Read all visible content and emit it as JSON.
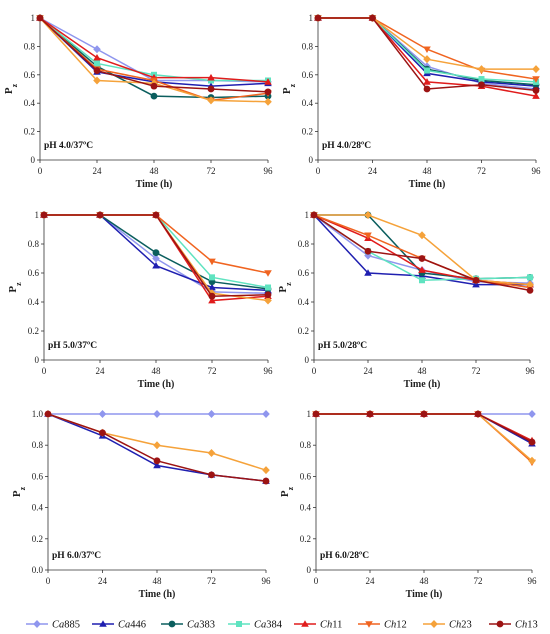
{
  "colors": {
    "Ca885": "#8f96ee",
    "Ca446": "#1f1fb0",
    "Ca383": "#0b5e5e",
    "Ca384": "#5fe3c0",
    "Ch11": "#e01c1c",
    "Ch12": "#f06420",
    "Ch23": "#f5a23a",
    "Ch13": "#9c1313"
  },
  "legend": {
    "placement": "bottom",
    "entries": [
      {
        "key": "Ca885",
        "genus": "Ca",
        "code": "885",
        "marker": "diamond"
      },
      {
        "key": "Ca446",
        "genus": "Ca",
        "code": "446",
        "marker": "triangle-up"
      },
      {
        "key": "Ca383",
        "genus": "Ca",
        "code": "383",
        "marker": "circle"
      },
      {
        "key": "Ca384",
        "genus": "Ca",
        "code": "384",
        "marker": "square"
      },
      {
        "key": "Ch11",
        "genus": "Ch",
        "code": "11",
        "marker": "triangle-up"
      },
      {
        "key": "Ch12",
        "genus": "Ch",
        "code": "12",
        "marker": "triangle-down"
      },
      {
        "key": "Ch23",
        "genus": "Ch",
        "code": "23",
        "marker": "diamond"
      },
      {
        "key": "Ch13",
        "genus": "Ch",
        "code": "13",
        "marker": "circle"
      }
    ]
  },
  "chart_data": [
    {
      "type": "line",
      "annotation": "pH 4.0/37ºC",
      "xlabel": "Time (h)",
      "ylabel": "Pz",
      "x": [
        0,
        24,
        48,
        72,
        96
      ],
      "xlim": [
        0,
        96
      ],
      "ylim": [
        0,
        1.0
      ],
      "yticks": [
        "0",
        "0.2",
        "0.4",
        "0.6",
        "0.8",
        "1"
      ],
      "grid": false,
      "series": [
        {
          "name": "Ca885",
          "values": [
            1.0,
            0.78,
            0.56,
            0.56,
            0.55
          ]
        },
        {
          "name": "Ca446",
          "values": [
            1.0,
            0.62,
            0.55,
            0.52,
            0.54
          ]
        },
        {
          "name": "Ca383",
          "values": [
            1.0,
            0.66,
            0.45,
            0.44,
            0.45
          ]
        },
        {
          "name": "Ca384",
          "values": [
            1.0,
            0.68,
            0.6,
            0.56,
            0.56
          ]
        },
        {
          "name": "Ch11",
          "values": [
            1.0,
            0.72,
            0.58,
            0.58,
            0.55
          ]
        },
        {
          "name": "Ch12",
          "values": [
            1.0,
            0.64,
            0.56,
            0.42,
            0.47
          ]
        },
        {
          "name": "Ch23",
          "values": [
            1.0,
            0.56,
            0.54,
            0.42,
            0.41
          ]
        },
        {
          "name": "Ch13",
          "values": [
            1.0,
            0.63,
            0.52,
            0.5,
            0.48
          ]
        }
      ]
    },
    {
      "type": "line",
      "annotation": "pH 4.0/28ºC",
      "xlabel": "Time (h)",
      "ylabel": "Pz",
      "x": [
        0,
        24,
        48,
        72,
        96
      ],
      "xlim": [
        0,
        96
      ],
      "ylim": [
        0,
        1.0
      ],
      "yticks": [
        "0",
        "0.2",
        "0.4",
        "0.6",
        "0.8",
        "1"
      ],
      "grid": false,
      "series": [
        {
          "name": "Ca885",
          "values": [
            1.0,
            1.0,
            0.66,
            0.54,
            0.5
          ]
        },
        {
          "name": "Ca446",
          "values": [
            1.0,
            1.0,
            0.61,
            0.55,
            0.52
          ]
        },
        {
          "name": "Ca383",
          "values": [
            1.0,
            1.0,
            0.64,
            0.56,
            0.53
          ]
        },
        {
          "name": "Ca384",
          "values": [
            1.0,
            1.0,
            0.63,
            0.57,
            0.55
          ]
        },
        {
          "name": "Ch11",
          "values": [
            1.0,
            1.0,
            0.55,
            0.52,
            0.45
          ]
        },
        {
          "name": "Ch12",
          "values": [
            1.0,
            1.0,
            0.78,
            0.63,
            0.57
          ]
        },
        {
          "name": "Ch23",
          "values": [
            1.0,
            1.0,
            0.71,
            0.64,
            0.64
          ]
        },
        {
          "name": "Ch13",
          "values": [
            1.0,
            1.0,
            0.5,
            0.53,
            0.49
          ]
        }
      ]
    },
    {
      "type": "line",
      "annotation": "pH 5.0/37ºC",
      "xlabel": "Time (h)",
      "ylabel": "Pz",
      "x": [
        0,
        24,
        48,
        72,
        96
      ],
      "xlim": [
        0,
        96
      ],
      "ylim": [
        0,
        1.0
      ],
      "yticks": [
        "0",
        "0.2",
        "0.4",
        "0.6",
        "0.8",
        "1"
      ],
      "grid": false,
      "series": [
        {
          "name": "Ca885",
          "values": [
            1.0,
            1.0,
            0.7,
            0.47,
            0.46
          ]
        },
        {
          "name": "Ca446",
          "values": [
            1.0,
            1.0,
            0.65,
            0.5,
            0.48
          ]
        },
        {
          "name": "Ca383",
          "values": [
            1.0,
            1.0,
            0.74,
            0.54,
            0.49
          ]
        },
        {
          "name": "Ca384",
          "values": [
            1.0,
            1.0,
            1.0,
            0.57,
            0.5
          ]
        },
        {
          "name": "Ch11",
          "values": [
            1.0,
            1.0,
            1.0,
            0.41,
            0.44
          ]
        },
        {
          "name": "Ch12",
          "values": [
            1.0,
            1.0,
            1.0,
            0.68,
            0.6
          ]
        },
        {
          "name": "Ch23",
          "values": [
            1.0,
            1.0,
            1.0,
            0.46,
            0.41
          ]
        },
        {
          "name": "Ch13",
          "values": [
            1.0,
            1.0,
            1.0,
            0.44,
            0.45
          ]
        }
      ]
    },
    {
      "type": "line",
      "annotation": "pH 5.0/28ºC",
      "xlabel": "Time (h)",
      "ylabel": "Pz",
      "x": [
        0,
        24,
        48,
        72,
        96
      ],
      "xlim": [
        0,
        96
      ],
      "ylim": [
        0,
        1.0
      ],
      "yticks": [
        "0",
        "0.2",
        "0.4",
        "0.6",
        "0.8",
        "1"
      ],
      "grid": false,
      "series": [
        {
          "name": "Ca885",
          "values": [
            1.0,
            0.72,
            0.62,
            0.54,
            0.53
          ]
        },
        {
          "name": "Ca446",
          "values": [
            1.0,
            0.6,
            0.58,
            0.52,
            0.52
          ]
        },
        {
          "name": "Ca383",
          "values": [
            1.0,
            1.0,
            0.6,
            0.56,
            0.57
          ]
        },
        {
          "name": "Ca384",
          "values": [
            1.0,
            0.75,
            0.55,
            0.56,
            0.57
          ]
        },
        {
          "name": "Ch11",
          "values": [
            1.0,
            0.84,
            0.62,
            0.55,
            0.52
          ]
        },
        {
          "name": "Ch12",
          "values": [
            1.0,
            0.86,
            0.7,
            0.55,
            0.5
          ]
        },
        {
          "name": "Ch23",
          "values": [
            1.0,
            1.0,
            0.86,
            0.55,
            0.52
          ]
        },
        {
          "name": "Ch13",
          "values": [
            1.0,
            0.75,
            0.7,
            0.55,
            0.48
          ]
        }
      ]
    },
    {
      "type": "line",
      "annotation": "pH 6.0/37ºC",
      "xlabel": "Time (h)",
      "ylabel": "Pz",
      "x": [
        0,
        24,
        48,
        72,
        96
      ],
      "xlim": [
        0,
        96
      ],
      "ylim": [
        0,
        1.0
      ],
      "yticks": [
        "0.0",
        "0.2",
        "0.4",
        "0.6",
        "0.8",
        "1.0"
      ],
      "grid": false,
      "series": [
        {
          "name": "Ca885",
          "values": [
            1.0,
            1.0,
            1.0,
            1.0,
            1.0
          ]
        },
        {
          "name": "Ca446",
          "values": [
            1.0,
            0.86,
            0.67,
            0.61,
            0.57
          ]
        },
        {
          "name": "Ch23",
          "values": [
            1.0,
            0.88,
            0.8,
            0.75,
            0.64
          ]
        },
        {
          "name": "Ch13",
          "values": [
            1.0,
            0.88,
            0.7,
            0.61,
            0.57
          ]
        }
      ]
    },
    {
      "type": "line",
      "annotation": "pH 6.0/28ºC",
      "xlabel": "Time (h)",
      "ylabel": "Pz",
      "x": [
        0,
        24,
        48,
        72,
        96
      ],
      "xlim": [
        0,
        96
      ],
      "ylim": [
        0,
        1.0
      ],
      "yticks": [
        "0",
        "0.2",
        "0.4",
        "0.6",
        "0.8",
        "1"
      ],
      "grid": false,
      "series": [
        {
          "name": "Ca885",
          "values": [
            1.0,
            1.0,
            1.0,
            1.0,
            1.0
          ]
        },
        {
          "name": "Ca446",
          "values": [
            1.0,
            1.0,
            1.0,
            1.0,
            0.81
          ]
        },
        {
          "name": "Ch11",
          "values": [
            1.0,
            1.0,
            1.0,
            1.0,
            0.83
          ]
        },
        {
          "name": "Ch12",
          "values": [
            1.0,
            1.0,
            1.0,
            1.0,
            0.69
          ]
        },
        {
          "name": "Ch23",
          "values": [
            1.0,
            1.0,
            1.0,
            1.0,
            0.7
          ]
        },
        {
          "name": "Ch13",
          "values": [
            1.0,
            1.0,
            1.0,
            1.0,
            0.82
          ]
        }
      ]
    }
  ]
}
